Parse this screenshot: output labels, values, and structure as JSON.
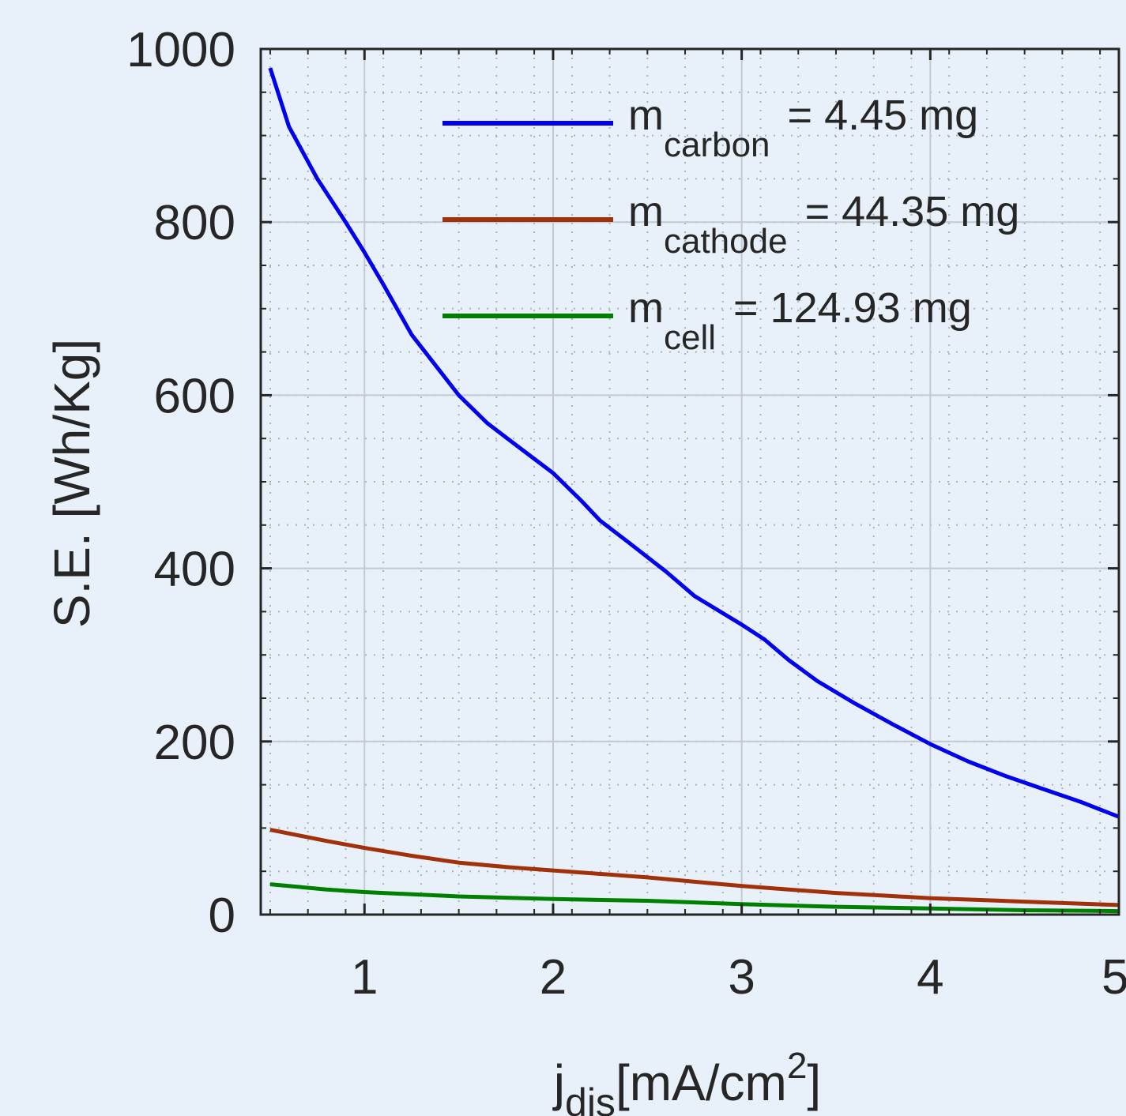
{
  "chart_data": {
    "type": "line",
    "title": "",
    "xlabel": {
      "main": "j",
      "sub": "dis",
      "unit": "[mA/cm",
      "sup": "2",
      "close": "]"
    },
    "ylabel": "S.E. [Wh/Kg]",
    "xlim": [
      0.45,
      5
    ],
    "ylim": [
      0,
      1000
    ],
    "xticks": [
      1,
      2,
      3,
      4,
      5
    ],
    "yticks": [
      0,
      200,
      400,
      600,
      800,
      1000
    ],
    "grid": true,
    "minor_grid": true,
    "legend_position": "top-right",
    "series": [
      {
        "name": "m_carbon = 4.45 mg",
        "legend": {
          "main": "m",
          "sub": "carbon",
          "value": "= 4.45 mg"
        },
        "color": "#0000ee",
        "x": [
          0.5,
          0.6,
          0.75,
          0.9,
          1.0,
          1.1,
          1.25,
          1.4,
          1.5,
          1.65,
          1.8,
          2.0,
          2.15,
          2.25,
          2.4,
          2.6,
          2.75,
          3.0,
          3.12,
          3.25,
          3.4,
          3.6,
          3.8,
          4.0,
          4.2,
          4.4,
          4.6,
          4.8,
          5.0
        ],
        "y": [
          978,
          910,
          850,
          800,
          765,
          728,
          670,
          628,
          600,
          568,
          543,
          510,
          478,
          455,
          430,
          396,
          368,
          335,
          318,
          294,
          270,
          244,
          220,
          197,
          177,
          160,
          145,
          130,
          113
        ]
      },
      {
        "name": "m_cathode = 44.35 mg",
        "legend": {
          "main": "m",
          "sub": "cathode",
          "value": "= 44.35 mg"
        },
        "color": "#a0310a",
        "x": [
          0.5,
          0.8,
          1.0,
          1.25,
          1.5,
          1.75,
          2.0,
          2.25,
          2.5,
          2.75,
          3.0,
          3.25,
          3.5,
          3.75,
          4.0,
          4.25,
          4.5,
          4.75,
          5.0
        ],
        "y": [
          98,
          85,
          77,
          68,
          60,
          55,
          51,
          47,
          43,
          38,
          33,
          29,
          25,
          22,
          19,
          17,
          15,
          13,
          11
        ]
      },
      {
        "name": "m_cell = 124.93 mg",
        "legend": {
          "main": "m",
          "sub": "cell",
          "value": "= 124.93 mg"
        },
        "color": "#008000",
        "x": [
          0.5,
          0.8,
          1.0,
          1.5,
          2.0,
          2.5,
          3.0,
          3.5,
          4.0,
          4.5,
          5.0
        ],
        "y": [
          35,
          29,
          26,
          21,
          18,
          16,
          12,
          9,
          7,
          5,
          4
        ]
      }
    ]
  }
}
